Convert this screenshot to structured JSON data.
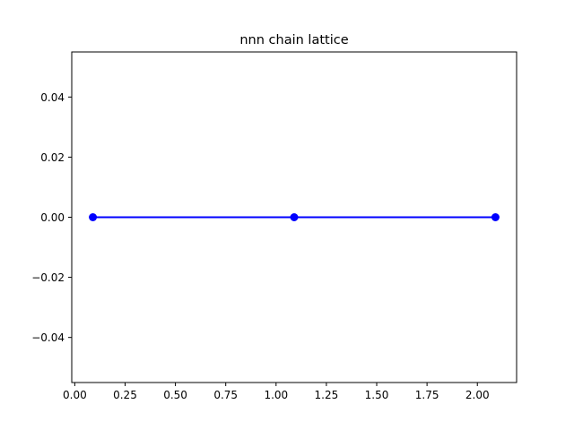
{
  "chart_data": {
    "type": "line",
    "title": "nnn chain lattice",
    "xlabel": "",
    "ylabel": "",
    "xlim": [
      -0.015,
      2.195
    ],
    "ylim": [
      -0.055,
      0.055
    ],
    "x_ticks": [
      0.0,
      0.25,
      0.5,
      0.75,
      1.0,
      1.25,
      1.5,
      1.75,
      2.0
    ],
    "x_tick_labels": [
      "0.00",
      "0.25",
      "0.50",
      "0.75",
      "1.00",
      "1.25",
      "1.50",
      "1.75",
      "2.00"
    ],
    "y_ticks": [
      -0.04,
      -0.02,
      0.0,
      0.02,
      0.04
    ],
    "y_tick_labels": [
      "−0.04",
      "−0.02",
      "0.00",
      "0.02",
      "0.04"
    ],
    "grid": false,
    "series": [
      {
        "x": [
          0.09,
          1.09,
          2.09
        ],
        "y": [
          0.0,
          0.0,
          0.0
        ],
        "color": "#0000ff",
        "marker": "circle"
      }
    ]
  }
}
